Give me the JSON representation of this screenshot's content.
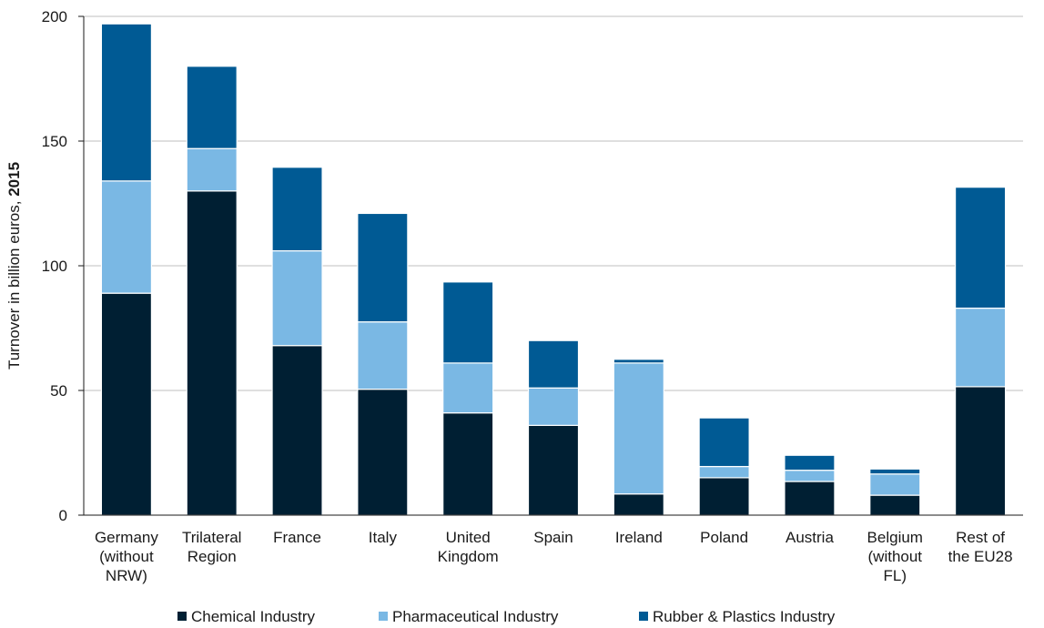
{
  "chart_data": {
    "type": "bar",
    "stacked": true,
    "ylabel_prefix": "Turnover  in billion euros, ",
    "ylabel_year": "2015",
    "ylim": [
      0,
      200
    ],
    "yticks": [
      "0",
      "50",
      "100",
      "150",
      "200"
    ],
    "grid": true,
    "legend_position": "bottom",
    "categories": [
      [
        "Germany",
        "(without",
        "NRW)"
      ],
      [
        "Trilateral",
        "Region"
      ],
      [
        "France"
      ],
      [
        "Italy"
      ],
      [
        "United",
        "Kingdom"
      ],
      [
        "Spain"
      ],
      [
        "Ireland"
      ],
      [
        "Poland"
      ],
      [
        "Austria"
      ],
      [
        "Belgium",
        "(without",
        "FL)"
      ],
      [
        "Rest of",
        "the EU28"
      ]
    ],
    "series": [
      {
        "name": "Chemical Industry",
        "color": "#001f33",
        "values": [
          89,
          130,
          68,
          50.5,
          41,
          36,
          8.5,
          15,
          13.5,
          8,
          51.5
        ]
      },
      {
        "name": "Pharmaceutical Industry",
        "color": "#7ab8e4",
        "values": [
          45,
          17,
          38,
          27,
          20,
          15,
          52.5,
          4.5,
          4.5,
          8.5,
          31.5
        ]
      },
      {
        "name": "Rubber & Plastics Industry",
        "color": "#005a94",
        "values": [
          63,
          33,
          33.5,
          43.5,
          32.5,
          19,
          1.5,
          19.5,
          6,
          2,
          48.5
        ]
      }
    ]
  }
}
